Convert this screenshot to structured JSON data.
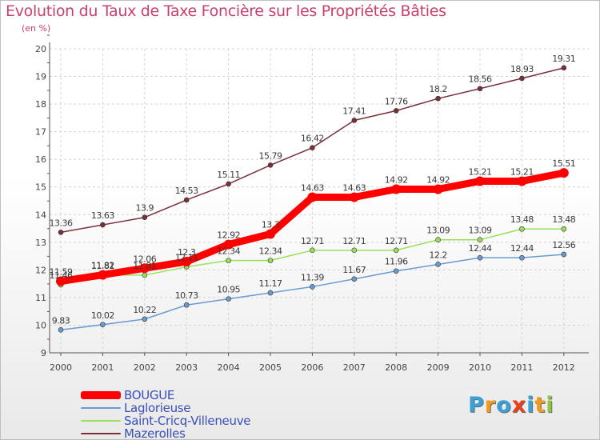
{
  "header": {
    "title": "Evolution du Taux de Taxe Foncière sur les Propriétés Bâties",
    "unit": "(en %)"
  },
  "logo": {
    "letters": [
      "P",
      "r",
      "o",
      "x",
      "i",
      "t",
      "i"
    ],
    "colors": [
      "#3aa0d8",
      "#f29a1f",
      "#3aa0d8",
      "#e8401c",
      "#3aa0d8",
      "#f29a1f",
      "#8cc63f"
    ]
  },
  "chart_data": {
    "type": "line",
    "x": [
      "2000",
      "2001",
      "2002",
      "2003",
      "2004",
      "2005",
      "2006",
      "2007",
      "2008",
      "2009",
      "2010",
      "2011",
      "2012"
    ],
    "ylim": [
      9,
      20
    ],
    "yticks": [
      "9",
      "10",
      "11",
      "12",
      "13",
      "14",
      "15",
      "16",
      "17",
      "18",
      "19",
      "20"
    ],
    "grid": true,
    "legend_position": "bottom-left",
    "series": [
      {
        "name": "BOUGUE",
        "color": "#ff0000",
        "values": [
          11.59,
          11.82,
          12.06,
          12.3,
          12.92,
          13.3,
          14.63,
          14.63,
          14.92,
          14.92,
          15.21,
          15.21,
          15.51
        ],
        "labels": [
          "11.59",
          "11.82",
          "12.06",
          "12.3",
          "12.92",
          "13.3",
          "14.63",
          "14.63",
          "14.92",
          "14.92",
          "15.21",
          "15.21",
          "15.51"
        ]
      },
      {
        "name": "Laglorieuse",
        "color": "#6a9bd0",
        "values": [
          9.83,
          10.02,
          10.22,
          10.73,
          10.95,
          11.17,
          11.39,
          11.67,
          11.96,
          12.2,
          12.44,
          12.44,
          12.56
        ],
        "labels": [
          "9.83",
          "10.02",
          "10.22",
          "10.73",
          "10.95",
          "11.17",
          "11.39",
          "11.67",
          "11.96",
          "12.2",
          "12.44",
          "12.44",
          "12.56"
        ]
      },
      {
        "name": "Saint-Cricq-Villeneuve",
        "color": "#99e05a",
        "values": [
          11.46,
          11.81,
          11.81,
          12.11,
          12.34,
          12.34,
          12.71,
          12.71,
          12.71,
          13.09,
          13.09,
          13.48,
          13.48
        ],
        "labels": [
          "11.46",
          "11.81",
          "11.81",
          "12.11",
          "12.34",
          "12.34",
          "12.71",
          "12.71",
          "12.71",
          "13.09",
          "13.09",
          "13.48",
          "13.48"
        ]
      },
      {
        "name": "Mazerolles",
        "color": "#7a2f3a",
        "values": [
          13.36,
          13.63,
          13.9,
          14.53,
          15.11,
          15.79,
          16.42,
          17.41,
          17.76,
          18.2,
          18.56,
          18.93,
          19.31
        ],
        "labels": [
          "13.36",
          "13.63",
          "13.9",
          "14.53",
          "15.11",
          "15.79",
          "16.42",
          "17.41",
          "17.76",
          "18.2",
          "18.56",
          "18.93",
          "19.31"
        ]
      }
    ]
  }
}
